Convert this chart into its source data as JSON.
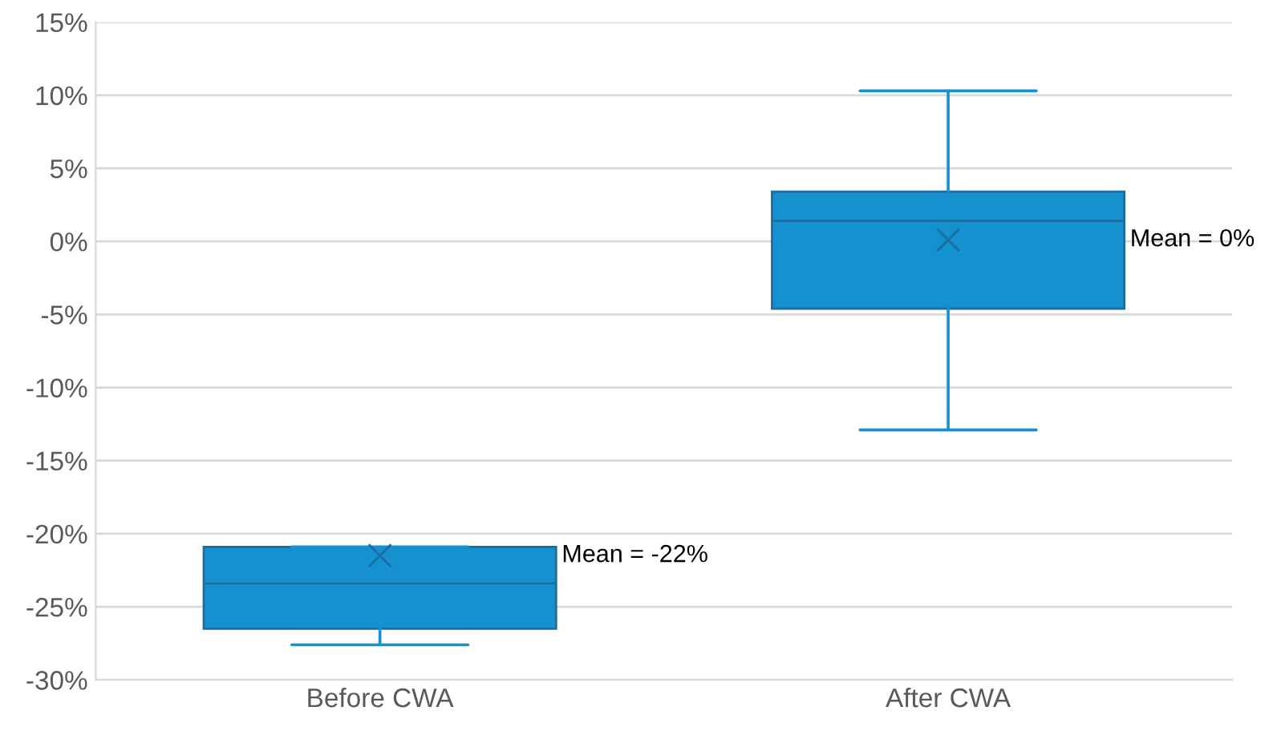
{
  "chart_data": {
    "type": "box",
    "categories": [
      "Before CWA",
      "After CWA"
    ],
    "boxes": [
      {
        "low": -27.6,
        "q1": -26.5,
        "median": -23.4,
        "q3": -20.9,
        "high": -20.9,
        "mean": -21.5
      },
      {
        "low": -12.9,
        "q1": -4.6,
        "median": 1.4,
        "q3": 3.4,
        "high": 10.3,
        "mean": 0.1
      }
    ],
    "color": "#1591cf",
    "ylim": [
      -30,
      15
    ],
    "yticks": [
      {
        "value": -30,
        "label": "-30%"
      },
      {
        "value": -25,
        "label": "-25%"
      },
      {
        "value": -20,
        "label": "-20%"
      },
      {
        "value": -15,
        "label": "-15%"
      },
      {
        "value": -10,
        "label": "-10%"
      },
      {
        "value": -5,
        "label": "-5%"
      },
      {
        "value": 0,
        "label": "0%"
      },
      {
        "value": 5,
        "label": "5%"
      },
      {
        "value": 10,
        "label": "10%"
      },
      {
        "value": 15,
        "label": "15%"
      }
    ],
    "grid": "y",
    "marker": "cross",
    "annotations": [
      "Mean = -22%",
      "Mean = 0%"
    ]
  }
}
